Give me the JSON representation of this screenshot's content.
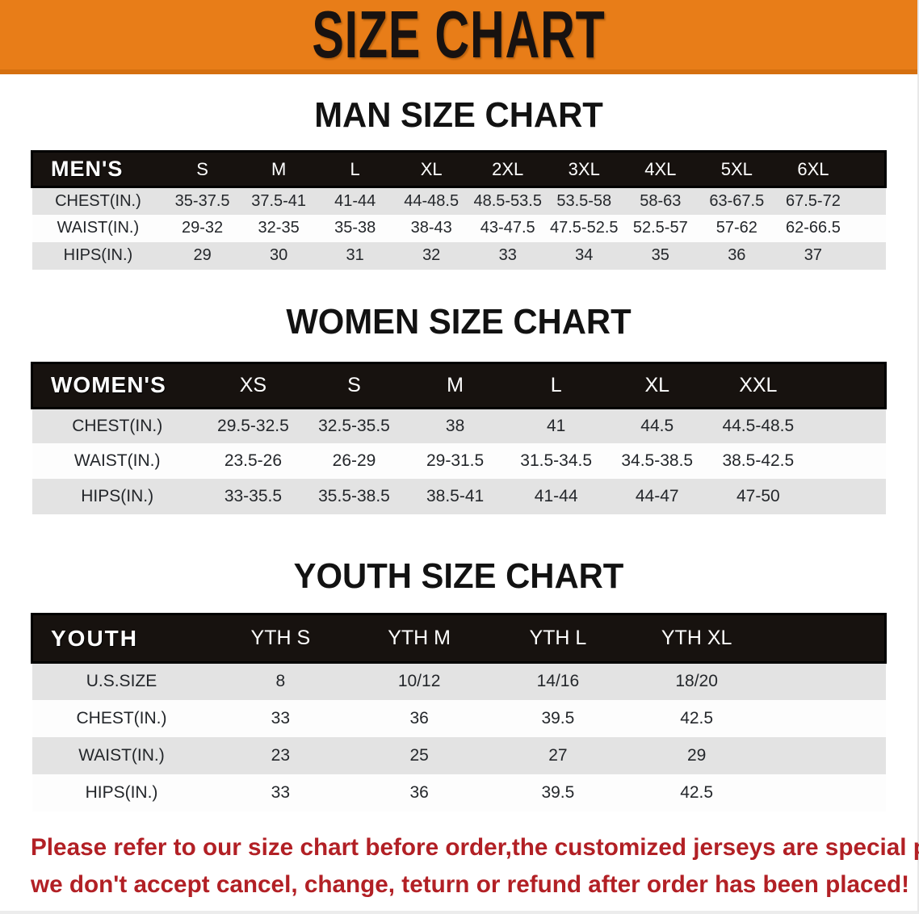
{
  "banner": {
    "title": "SIZE CHART",
    "background_color": "#e87d18",
    "text_color": "#181210"
  },
  "sections": [
    {
      "heading": "MAN SIZE CHART",
      "table": {
        "label": "MEN'S",
        "columns": [
          "S",
          "M",
          "L",
          "XL",
          "2XL",
          "3XL",
          "4XL",
          "5XL",
          "6XL"
        ],
        "rows": [
          {
            "label": "CHEST(IN.)",
            "values": [
              "35-37.5",
              "37.5-41",
              "41-44",
              "44-48.5",
              "48.5-53.5",
              "53.5-58",
              "58-63",
              "63-67.5",
              "67.5-72"
            ]
          },
          {
            "label": "WAIST(IN.)",
            "values": [
              "29-32",
              "32-35",
              "35-38",
              "38-43",
              "43-47.5",
              "47.5-52.5",
              "52.5-57",
              "57-62",
              "62-66.5"
            ]
          },
          {
            "label": "HIPS(IN.)",
            "values": [
              "29",
              "30",
              "31",
              "32",
              "33",
              "34",
              "35",
              "36",
              "37"
            ]
          }
        ]
      }
    },
    {
      "heading": "WOMEN SIZE CHART",
      "table": {
        "label": "WOMEN'S",
        "columns": [
          "XS",
          "S",
          "M",
          "L",
          "XL",
          "XXL"
        ],
        "rows": [
          {
            "label": "CHEST(IN.)",
            "values": [
              "29.5-32.5",
              "32.5-35.5",
              "38",
              "41",
              "44.5",
              "44.5-48.5"
            ]
          },
          {
            "label": "WAIST(IN.)",
            "values": [
              "23.5-26",
              "26-29",
              "29-31.5",
              "31.5-34.5",
              "34.5-38.5",
              "38.5-42.5"
            ]
          },
          {
            "label": "HIPS(IN.)",
            "values": [
              "33-35.5",
              "35.5-38.5",
              "38.5-41",
              "41-44",
              "44-47",
              "47-50"
            ]
          }
        ]
      }
    },
    {
      "heading": "YOUTH SIZE CHART",
      "table": {
        "label": "YOUTH",
        "columns": [
          "YTH S",
          "YTH M",
          "YTH L",
          "YTH XL"
        ],
        "rows": [
          {
            "label": "U.S.SIZE",
            "values": [
              "8",
              "10/12",
              "14/16",
              "18/20"
            ]
          },
          {
            "label": "CHEST(IN.)",
            "values": [
              "33",
              "36",
              "39.5",
              "42.5"
            ]
          },
          {
            "label": "WAIST(IN.)",
            "values": [
              "23",
              "25",
              "27",
              "29"
            ]
          },
          {
            "label": "HIPS(IN.)",
            "values": [
              "33",
              "36",
              "39.5",
              "42.5"
            ]
          }
        ]
      }
    }
  ],
  "disclaimer": {
    "line1": "Please refer to our size chart before order,the customized jerseys are special products,",
    "line2": "we don't accept cancel, change, teturn or refund after order has been placed!",
    "color": "#b22025"
  },
  "table_colors": {
    "header_bg": "#17120f",
    "header_text": "#ffffff",
    "row_odd_bg": "#e3e3e3",
    "row_even_bg": "#fdfdfd"
  }
}
